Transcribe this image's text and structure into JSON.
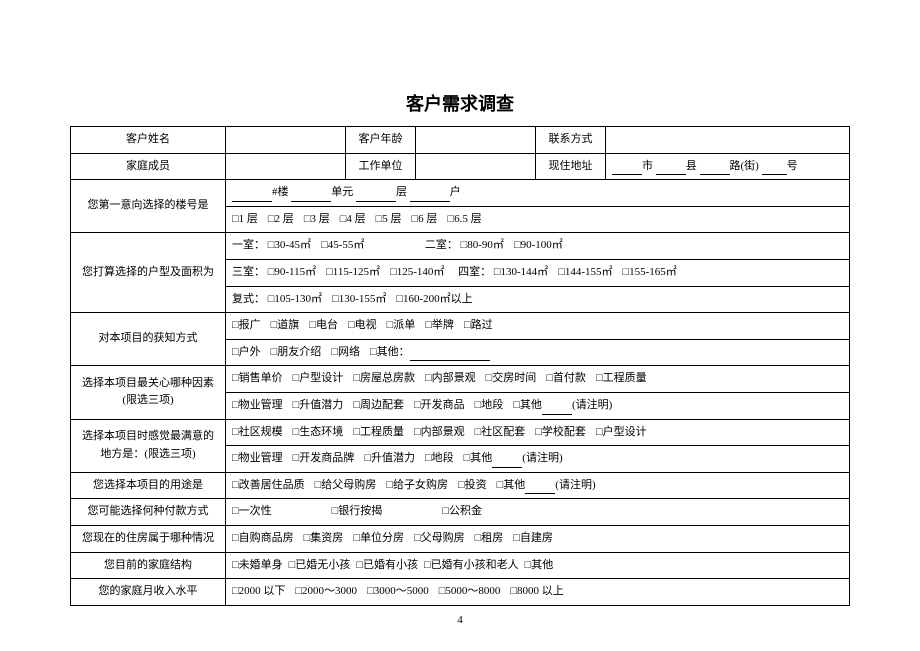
{
  "title": "客户需求调查",
  "row1": {
    "name_lbl": "客户姓名",
    "age_lbl": "客户年龄",
    "contact_lbl": "联系方式"
  },
  "row2": {
    "family_lbl": "家庭成员",
    "work_lbl": "工作单位",
    "addr_lbl": "现住地址",
    "addr_city": "市",
    "addr_county": "县",
    "addr_road": "路(街)",
    "addr_no": "号"
  },
  "row3": {
    "lbl": "您第一意向选择的楼号是",
    "bld": "#楼",
    "unit": "单元",
    "floor": "层",
    "house": "户",
    "opts": [
      "□1 层",
      "□2 层",
      "□3 层",
      "□4 层",
      "□5 层",
      "□6 层",
      "□6.5 层"
    ]
  },
  "row4": {
    "lbl": "您打算选择的户型及面积为",
    "l1a": "一室：",
    "l1a_opts": [
      "□30-45㎡",
      "□45-55㎡"
    ],
    "l1b": "二室：",
    "l1b_opts": [
      "□80-90㎡",
      "□90-100㎡"
    ],
    "l2a": "三室：",
    "l2a_opts": [
      "□90-115㎡",
      "□115-125㎡",
      "□125-140㎡"
    ],
    "l2b": "四室：",
    "l2b_opts": [
      "□130-144㎡",
      "□144-155㎡",
      "□155-165㎡"
    ],
    "l3a": "复式：",
    "l3a_opts": [
      "□105-130㎡",
      "□130-155㎡",
      "□160-200㎡以上"
    ]
  },
  "row5": {
    "lbl": "对本项目的获知方式",
    "opts1": [
      "□报广",
      "□道旗",
      "□电台",
      "□电视",
      "□派单",
      "□举牌",
      "□路过"
    ],
    "opts2": [
      "□户外",
      "□朋友介绍",
      "□网络",
      "□其他："
    ]
  },
  "row6": {
    "lbl1": "选择本项目最关心哪种因素",
    "lbl2": "(限选三项)",
    "opts1": [
      "□销售单价",
      "□户型设计",
      "□房屋总房款",
      "□内部景观",
      "□交房时间",
      "□首付款",
      "□工程质量"
    ],
    "opts2": [
      "□物业管理",
      "□升值潜力",
      "□周边配套",
      "□开发商品",
      "□地段",
      "□其他"
    ],
    "note": "(请注明)"
  },
  "row7": {
    "lbl1": "选择本项目时感觉最满意的",
    "lbl2": "地方是：(限选三项)",
    "opts1": [
      "□社区规模",
      "□生态环境",
      "□工程质量",
      "□内部景观",
      "□社区配套",
      "□学校配套",
      "□户型设计"
    ],
    "opts2": [
      "□物业管理",
      "□开发商品牌",
      "□升值潜力",
      "□地段",
      "□其他"
    ],
    "note": "(请注明)"
  },
  "row8": {
    "lbl": "您选择本项目的用途是",
    "opts": [
      "□改善居住品质",
      "□给父母购房",
      "□给子女购房",
      "□投资",
      "□其他"
    ],
    "note": "(请注明)"
  },
  "row9": {
    "lbl": "您可能选择何种付款方式",
    "opts": [
      "□一次性",
      "□银行按揭",
      "□公积金"
    ]
  },
  "row10": {
    "lbl": "您现在的住房属于哪种情况",
    "opts": [
      "□自购商品房",
      "□集资房",
      "□单位分房",
      "□父母购房",
      "□租房",
      "□自建房"
    ]
  },
  "row11": {
    "lbl": "您目前的家庭结构",
    "opts": [
      "□未婚单身",
      "□已婚无小孩",
      "□已婚有小孩",
      "□已婚有小孩和老人",
      "□其他"
    ]
  },
  "row12": {
    "lbl": "您的家庭月收入水平",
    "opts": [
      "□2000 以下",
      "□2000～3000",
      "□3000～5000",
      "□5000～8000",
      "□8000 以上"
    ]
  },
  "page_no": "4",
  "colors": {
    "text": "#000000",
    "border": "#000000",
    "bg": "#ffffff"
  }
}
